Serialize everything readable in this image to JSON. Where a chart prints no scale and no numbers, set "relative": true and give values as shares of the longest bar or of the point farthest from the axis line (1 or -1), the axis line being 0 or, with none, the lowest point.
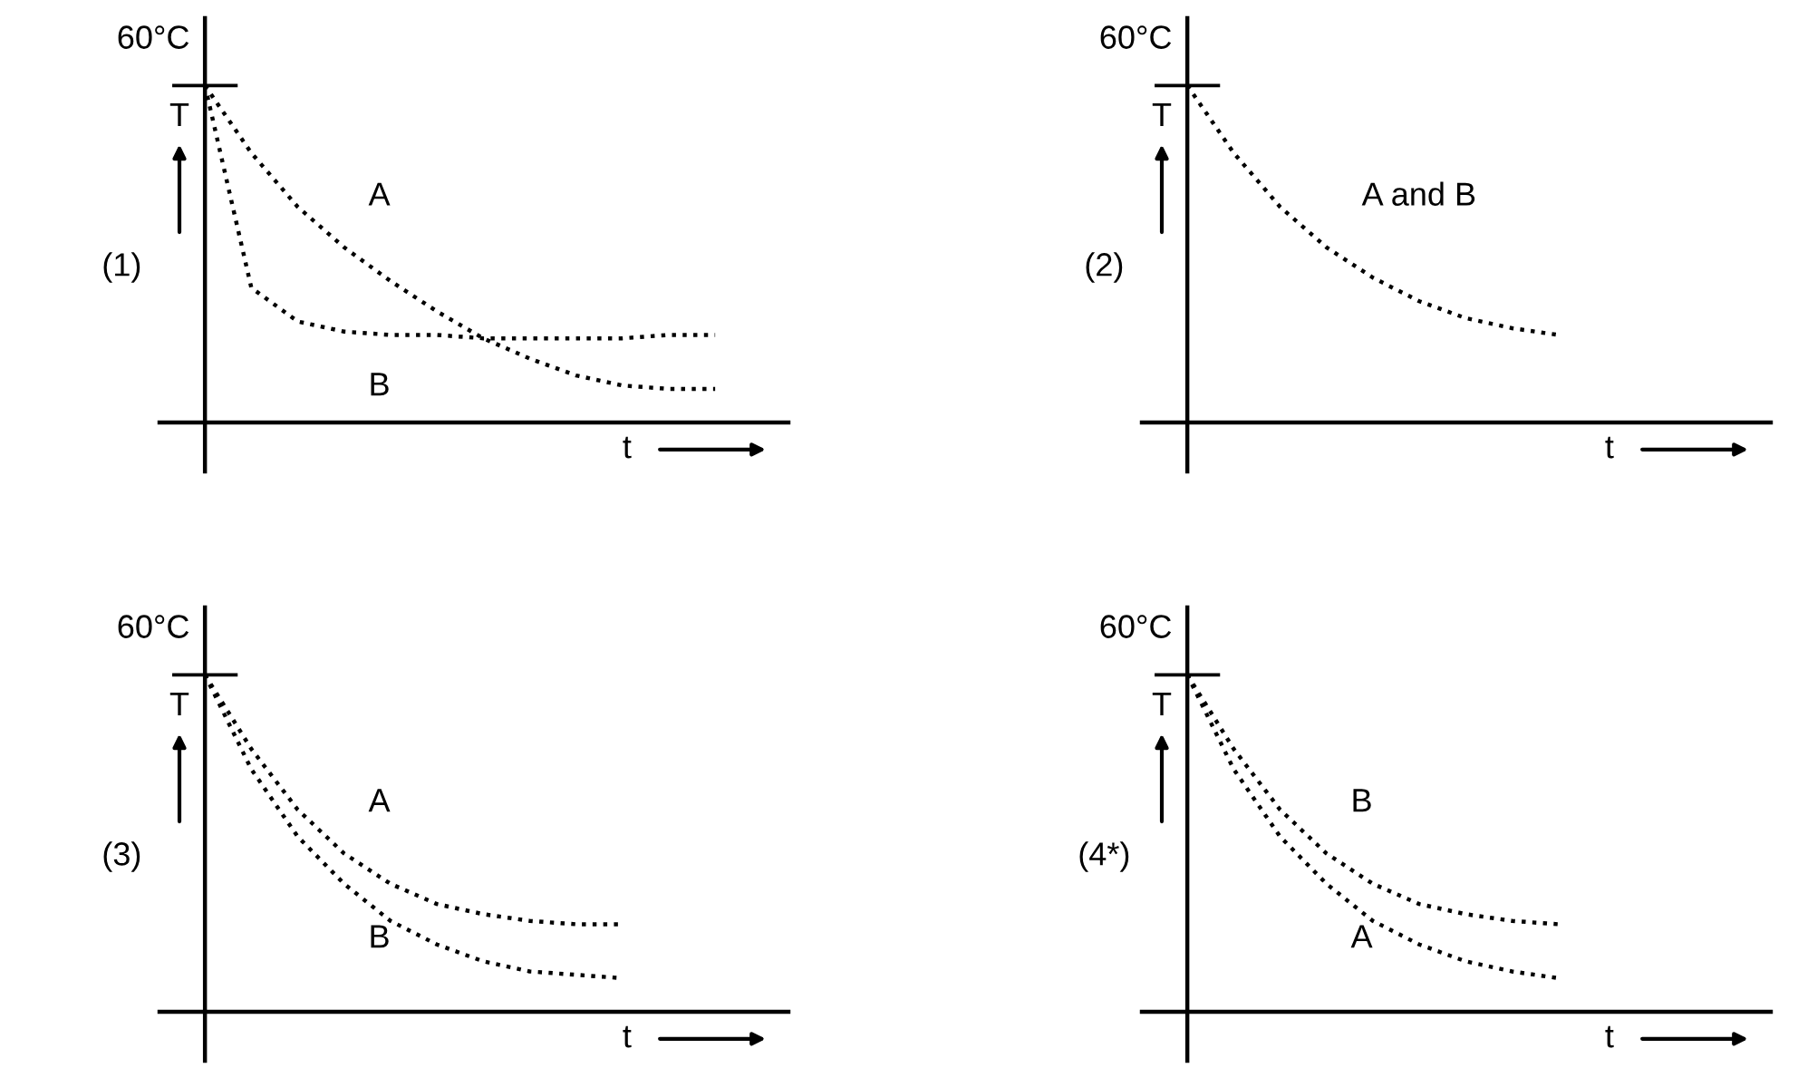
{
  "chart_data": [
    {
      "type": "line",
      "relative": true,
      "title": "(1)",
      "xlabel": "t",
      "ylabel": "T",
      "annotations": [
        "60°C"
      ],
      "line_style": "dotted",
      "categories": [
        null,
        null,
        null,
        null,
        null,
        null,
        null,
        null,
        null,
        null,
        null,
        null,
        null
      ],
      "series": [
        {
          "name": "A",
          "color": "#000000",
          "values": [
            1,
            0.8,
            0.64,
            0.52,
            0.42,
            0.33,
            0.25,
            0.19,
            0.14,
            0.11,
            0.1,
            0.1,
            null
          ]
        },
        {
          "name": "B",
          "color": "#000000",
          "values": [
            1,
            0.4,
            0.3,
            0.27,
            0.26,
            0.26,
            0.25,
            0.25,
            0.25,
            0.25,
            0.26,
            0.26,
            null
          ]
        }
      ]
    },
    {
      "type": "line",
      "relative": true,
      "title": "(2)",
      "xlabel": "t",
      "ylabel": "T",
      "annotations": [
        "60°C"
      ],
      "line_style": "dotted",
      "categories": [
        null,
        null,
        null,
        null,
        null,
        null,
        null,
        null,
        null,
        null,
        null,
        null,
        null
      ],
      "series": [
        {
          "name": "A and B",
          "color": "#000000",
          "values": [
            1,
            0.8,
            0.64,
            0.52,
            0.43,
            0.36,
            0.31,
            0.28,
            0.26,
            null,
            null,
            null,
            null
          ]
        }
      ]
    },
    {
      "type": "line",
      "relative": true,
      "title": "(3)",
      "xlabel": "t",
      "ylabel": "T",
      "annotations": [
        "60°C"
      ],
      "line_style": "dotted",
      "categories": [
        null,
        null,
        null,
        null,
        null,
        null,
        null,
        null,
        null,
        null,
        null,
        null,
        null
      ],
      "series": [
        {
          "name": "A",
          "color": "#000000",
          "values": [
            1,
            0.78,
            0.6,
            0.47,
            0.38,
            0.32,
            0.29,
            0.27,
            0.26,
            0.26,
            null,
            null,
            null
          ]
        },
        {
          "name": "B",
          "color": "#000000",
          "values": [
            1,
            0.72,
            0.52,
            0.38,
            0.27,
            0.2,
            0.15,
            0.12,
            0.11,
            0.1,
            null,
            null,
            null
          ]
        }
      ]
    },
    {
      "type": "line",
      "relative": true,
      "title": "(4*)",
      "xlabel": "t",
      "ylabel": "T",
      "annotations": [
        "60°C"
      ],
      "line_style": "dotted",
      "categories": [
        null,
        null,
        null,
        null,
        null,
        null,
        null,
        null,
        null,
        null,
        null,
        null,
        null
      ],
      "series": [
        {
          "name": "B",
          "color": "#000000",
          "values": [
            1,
            0.78,
            0.6,
            0.47,
            0.38,
            0.32,
            0.29,
            0.27,
            0.26,
            null,
            null,
            null,
            null
          ]
        },
        {
          "name": "A",
          "color": "#000000",
          "values": [
            1,
            0.72,
            0.52,
            0.38,
            0.27,
            0.2,
            0.15,
            0.12,
            0.1,
            null,
            null,
            null,
            null
          ]
        }
      ]
    }
  ]
}
